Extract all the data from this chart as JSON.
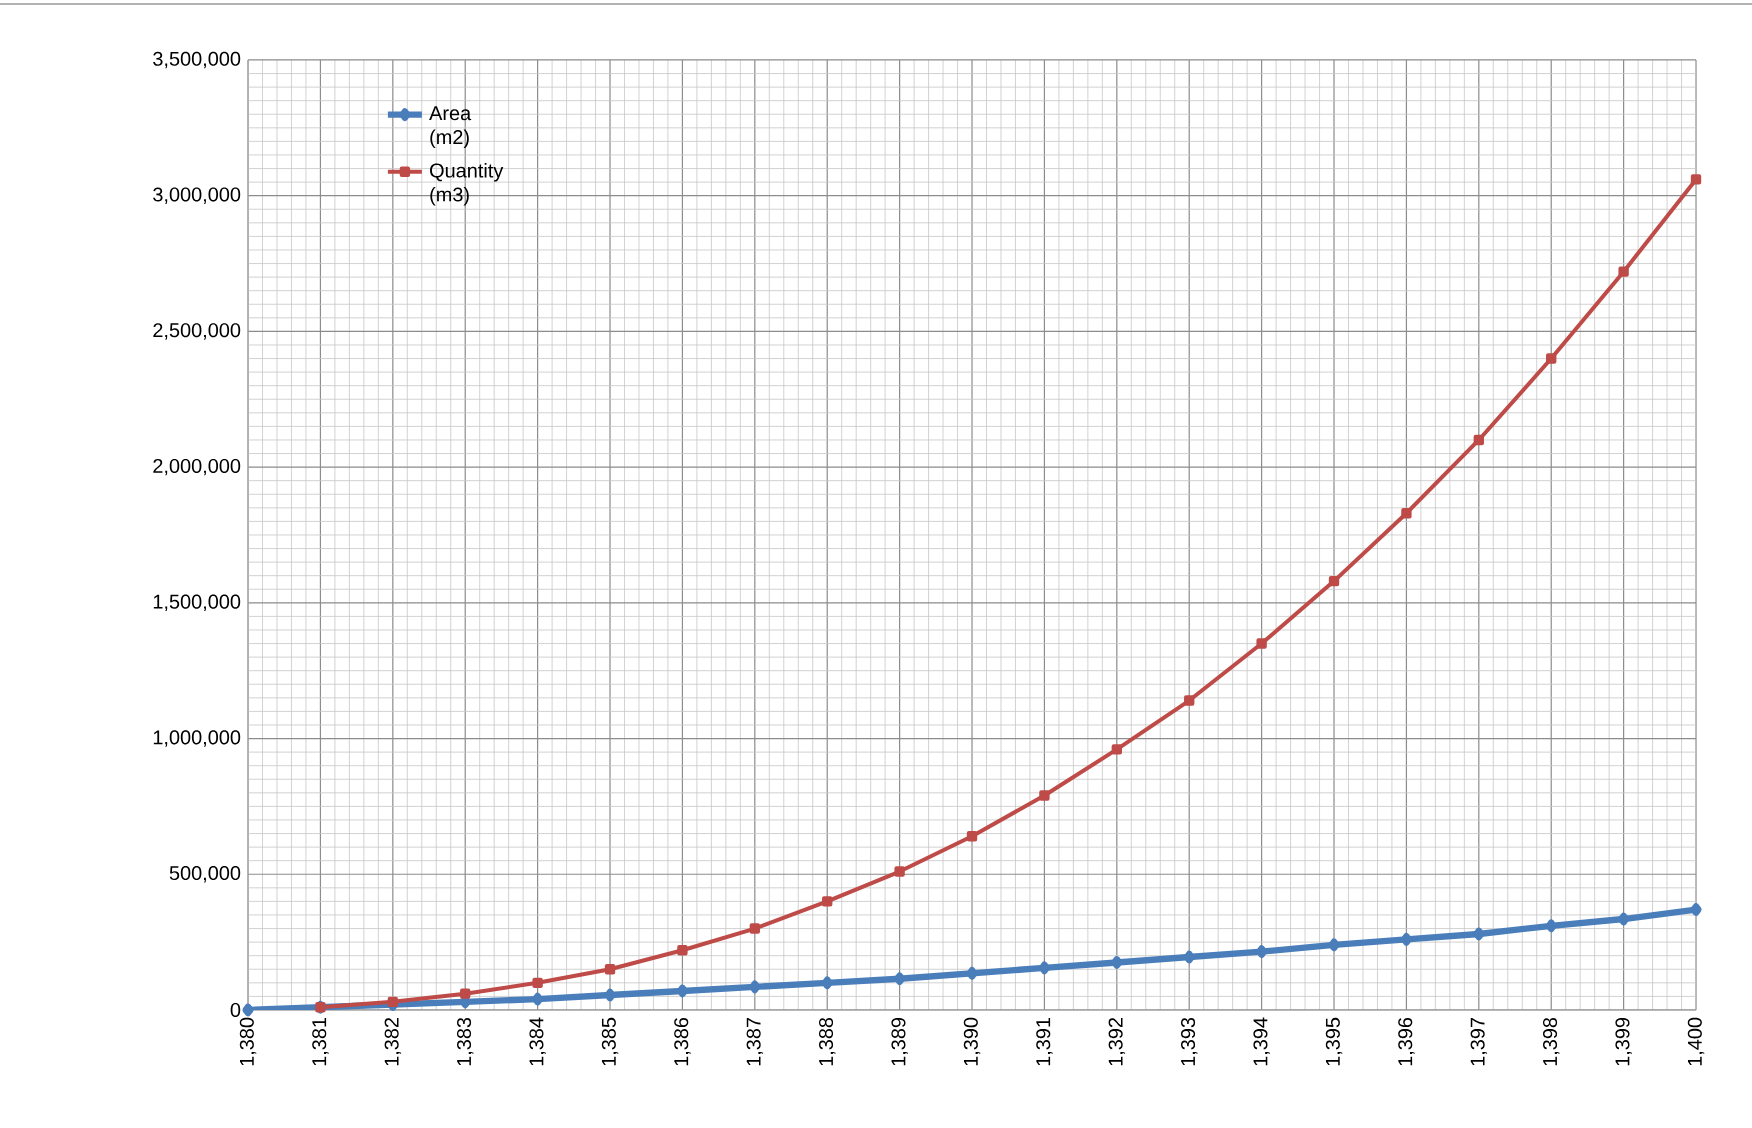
{
  "chart_data": {
    "type": "line",
    "x": [
      1380,
      1381,
      1382,
      1383,
      1384,
      1385,
      1386,
      1387,
      1388,
      1389,
      1390,
      1391,
      1392,
      1393,
      1394,
      1395,
      1396,
      1397,
      1398,
      1399,
      1400
    ],
    "series": [
      {
        "name": "Area (m2)",
        "color": "#4a7ebb",
        "marker": "diamond",
        "values": [
          0,
          10000,
          20000,
          30000,
          40000,
          55000,
          70000,
          85000,
          100000,
          115000,
          135000,
          155000,
          175000,
          195000,
          215000,
          240000,
          260000,
          280000,
          310000,
          335000,
          370000
        ]
      },
      {
        "name": "Quantity (m3)",
        "color": "#be4b48",
        "marker": "square",
        "values": [
          null,
          10000,
          30000,
          60000,
          100000,
          150000,
          220000,
          300000,
          400000,
          510000,
          640000,
          790000,
          960000,
          1140000,
          1350000,
          1580000,
          1830000,
          2100000,
          2400000,
          2720000,
          3060000
        ]
      }
    ],
    "xlim": [
      1380,
      1400
    ],
    "xticks": [
      {
        "value": 1380,
        "label": "1,380"
      },
      {
        "value": 1381,
        "label": "1,381"
      },
      {
        "value": 1382,
        "label": "1,382"
      },
      {
        "value": 1383,
        "label": "1,383"
      },
      {
        "value": 1384,
        "label": "1,384"
      },
      {
        "value": 1385,
        "label": "1,385"
      },
      {
        "value": 1386,
        "label": "1,386"
      },
      {
        "value": 1387,
        "label": "1,387"
      },
      {
        "value": 1388,
        "label": "1,388"
      },
      {
        "value": 1389,
        "label": "1,389"
      },
      {
        "value": 1390,
        "label": "1,390"
      },
      {
        "value": 1391,
        "label": "1,391"
      },
      {
        "value": 1392,
        "label": "1,392"
      },
      {
        "value": 1393,
        "label": "1,393"
      },
      {
        "value": 1394,
        "label": "1,394"
      },
      {
        "value": 1395,
        "label": "1,395"
      },
      {
        "value": 1396,
        "label": "1,396"
      },
      {
        "value": 1397,
        "label": "1,397"
      },
      {
        "value": 1398,
        "label": "1,398"
      },
      {
        "value": 1399,
        "label": "1,399"
      },
      {
        "value": 1400,
        "label": "1,400"
      }
    ],
    "ylim": [
      0,
      3500000
    ],
    "yticks": [
      0,
      {
        "value": 500000,
        "label": "500,000"
      },
      {
        "value": 1000000,
        "label": "1,000,000"
      },
      {
        "value": 1500000,
        "label": "1,500,000"
      },
      {
        "value": 2000000,
        "label": "2,000,000"
      },
      {
        "value": 2500000,
        "label": "2,500,000"
      },
      {
        "value": 3000000,
        "label": "3,000,000"
      },
      {
        "value": 3500000,
        "label": "3,500,000"
      }
    ],
    "grid": true,
    "legend": "top left",
    "line_style": "solid"
  }
}
